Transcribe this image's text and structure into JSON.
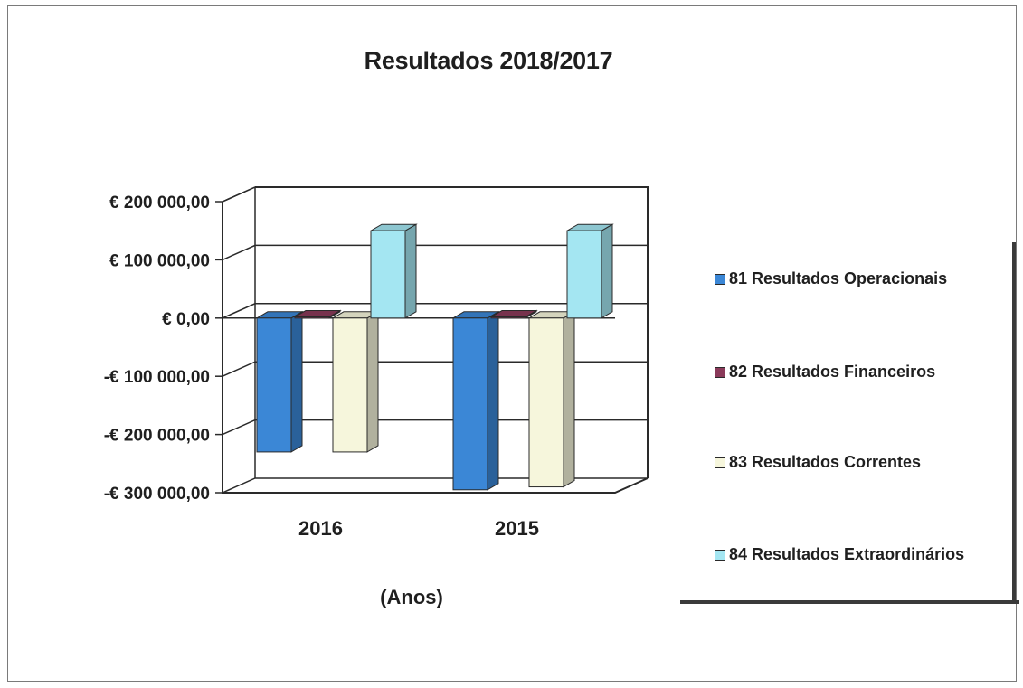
{
  "chart_data": {
    "type": "bar",
    "title": "Resultados 2018/2017",
    "xlabel": "(Anos)",
    "ylabel": "",
    "categories": [
      "2016",
      "2015"
    ],
    "ylim": [
      -300000,
      200000
    ],
    "yticks": [
      200000,
      100000,
      0,
      -100000,
      -200000,
      -300000
    ],
    "ytick_labels": [
      "€ 200 000,00",
      "€ 100 000,00",
      "€ 0,00",
      "-€ 100 000,00",
      "-€ 200 000,00",
      "-€ 300 000,00"
    ],
    "grid": true,
    "legend_position": "right",
    "series": [
      {
        "name": "81 Resultados Operacionais",
        "values": [
          -230000,
          -295000
        ],
        "color": "#3b87d6"
      },
      {
        "name": "82 Resultados Financeiros",
        "values": [
          2000,
          2000
        ],
        "color": "#8a3a5a"
      },
      {
        "name": "83 Resultados Correntes",
        "values": [
          -230000,
          -290000
        ],
        "color": "#f6f6dc"
      },
      {
        "name": "84 Resultados Extraordinários",
        "values": [
          150000,
          150000
        ],
        "color": "#a4e6f2"
      }
    ]
  }
}
